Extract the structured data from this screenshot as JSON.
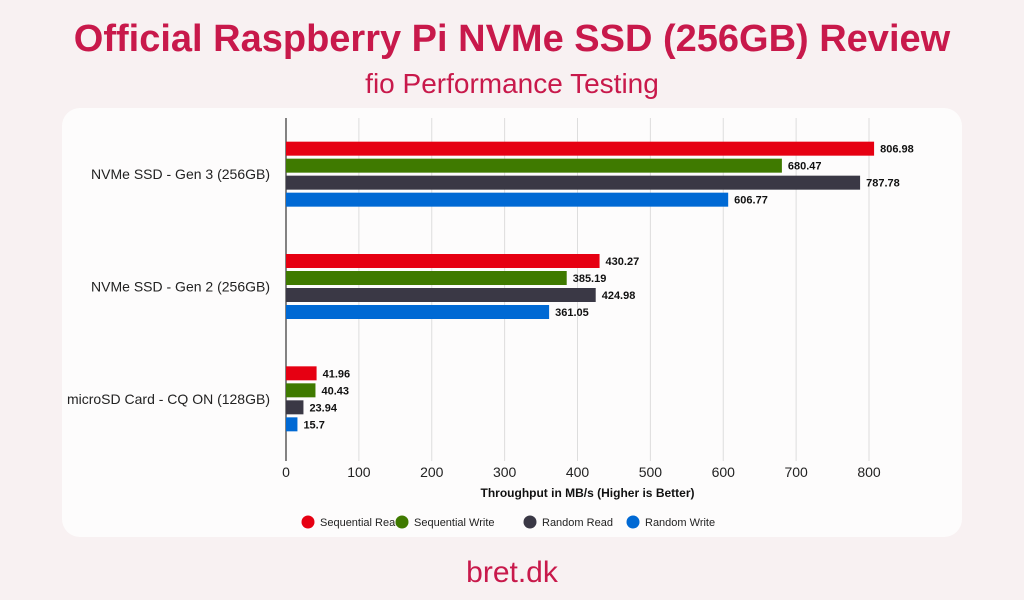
{
  "header": {
    "title": "Official Raspberry Pi NVMe SSD (256GB) Review",
    "subtitle": "fio Performance Testing"
  },
  "footer": {
    "brand": "bret.dk"
  },
  "chart_data": {
    "type": "bar",
    "orientation": "horizontal",
    "categories": [
      "NVMe SSD - Gen 3 (256GB)",
      "NVMe SSD - Gen 2 (256GB)",
      "microSD Card - CQ ON (128GB)"
    ],
    "series": [
      {
        "name": "Sequential Read",
        "color": "#e60012",
        "values": [
          806.98,
          430.27,
          41.96
        ]
      },
      {
        "name": "Sequential Write",
        "color": "#3f7a00",
        "values": [
          680.47,
          385.19,
          40.43
        ]
      },
      {
        "name": "Random Read",
        "color": "#3a3845",
        "values": [
          787.78,
          424.98,
          23.94
        ]
      },
      {
        "name": "Random Write",
        "color": "#0069d4",
        "values": [
          606.77,
          361.05,
          15.7
        ]
      }
    ],
    "xlabel": "Throughput in MB/s (Higher is Better)",
    "xlim": [
      0,
      800
    ],
    "xticks": [
      "0",
      "100",
      "200",
      "300",
      "400",
      "500",
      "600",
      "700",
      "800"
    ],
    "grid": true,
    "legend": "bottom"
  }
}
